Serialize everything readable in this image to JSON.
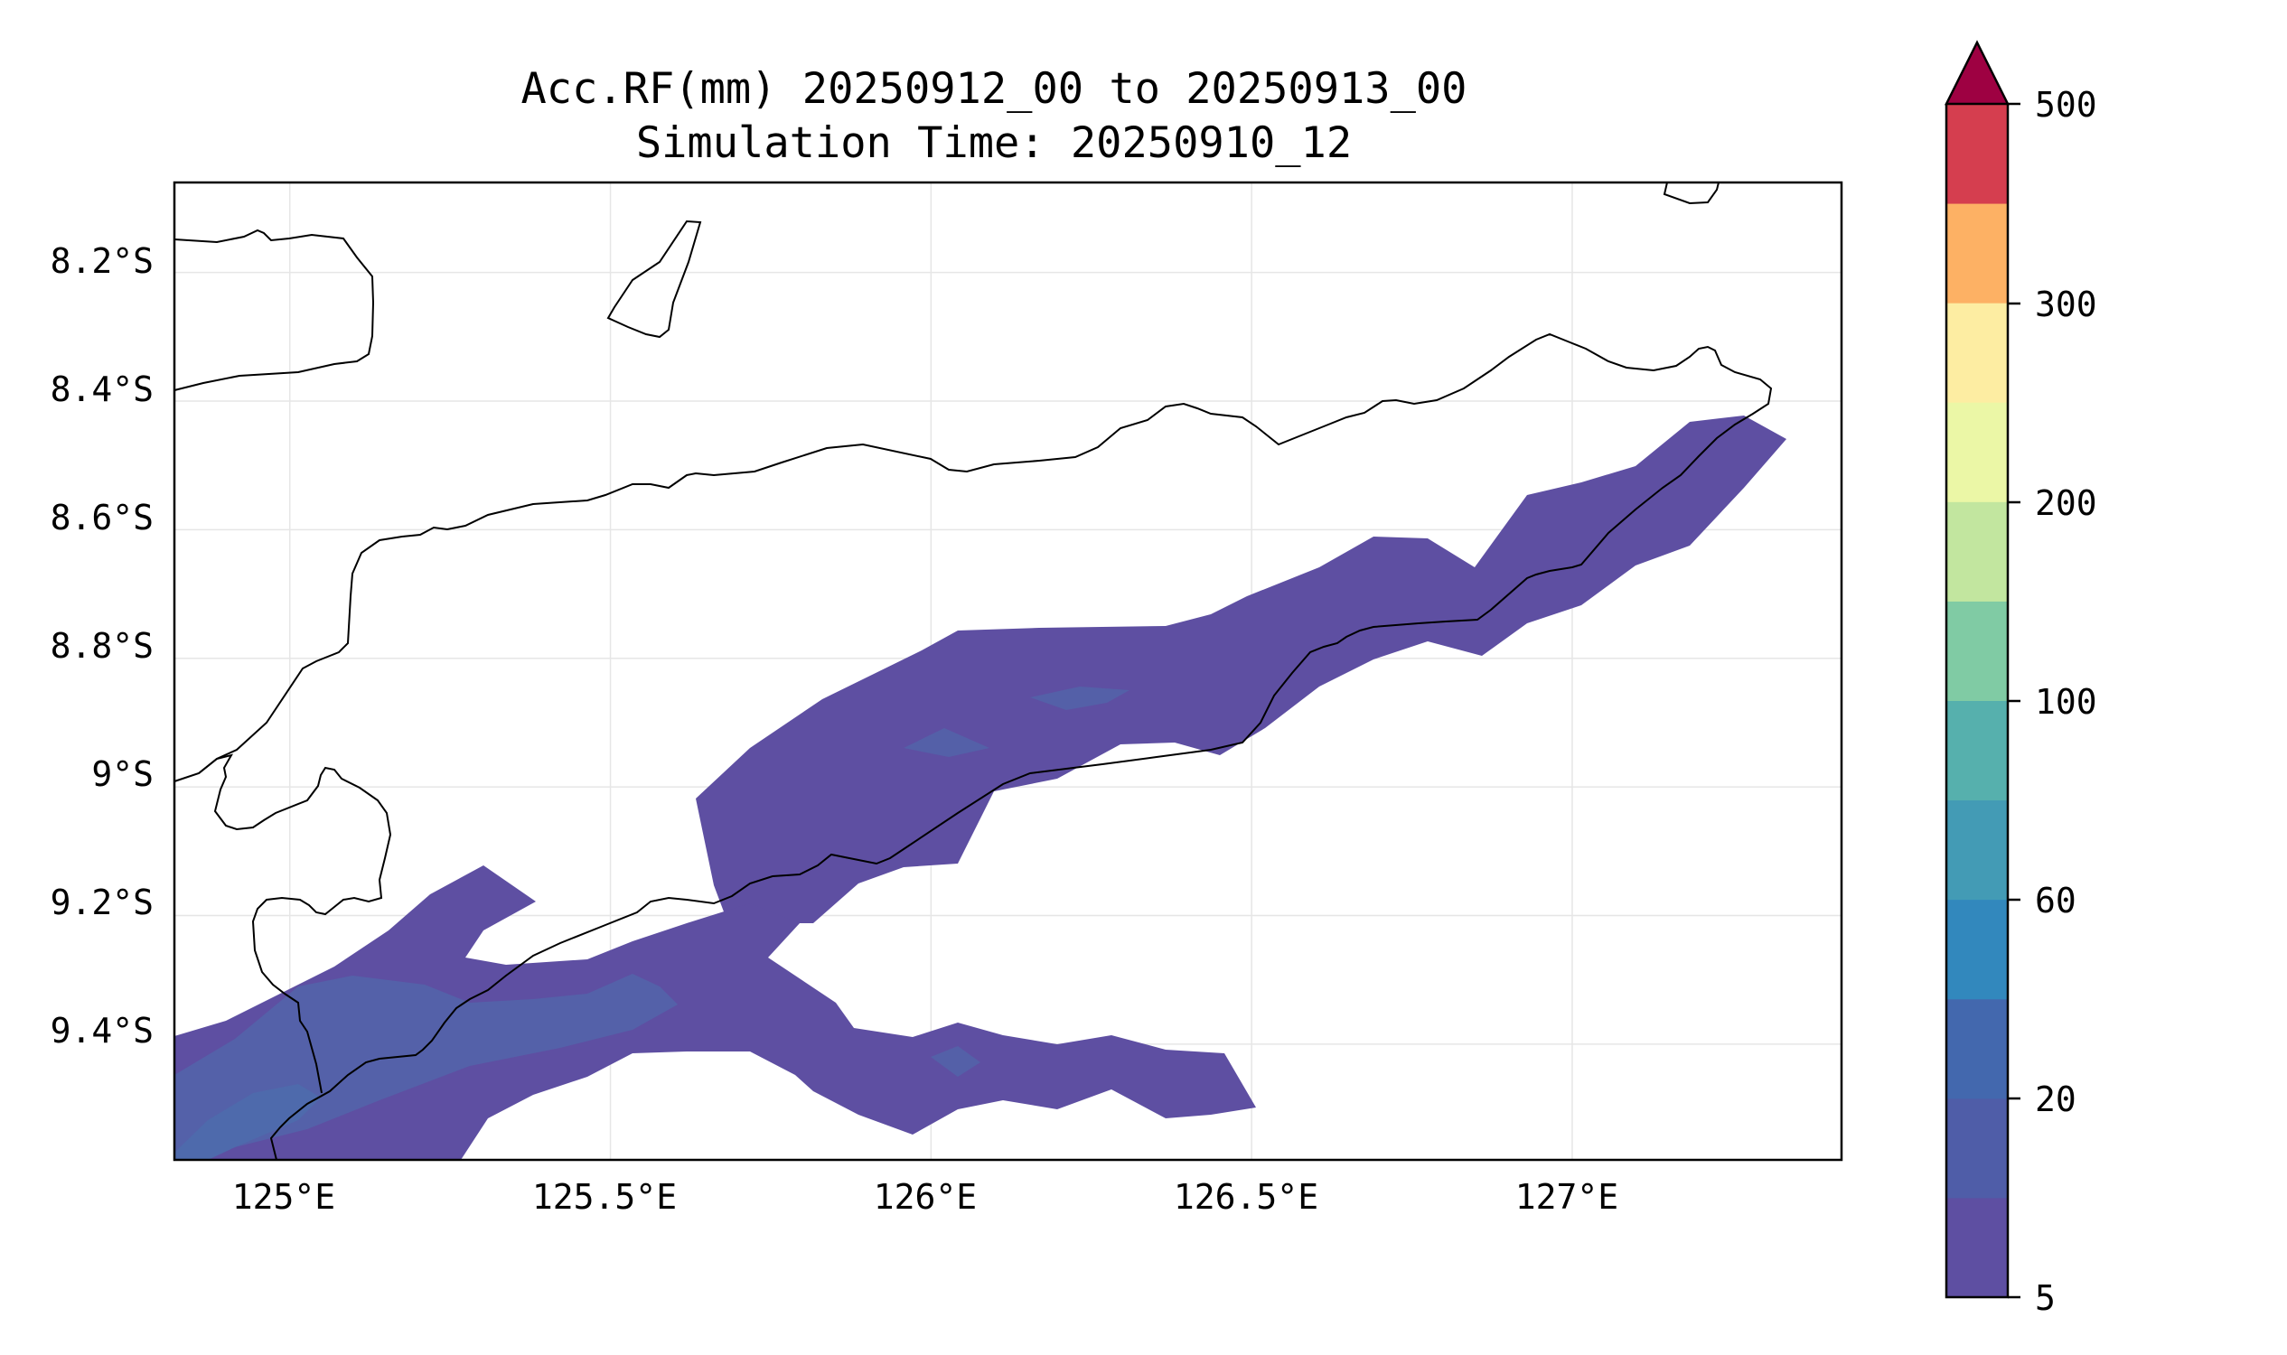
{
  "title_line1": "Acc.RF(mm) 20250912_00 to 20250913_00",
  "title_line2": "Simulation Time: 20250910_12",
  "chart_data": {
    "type": "contour-map",
    "grid": true,
    "x_ticks": [
      "125°E",
      "125.5°E",
      "126°E",
      "126.5°E",
      "127°E"
    ],
    "y_ticks": [
      "8.2°S",
      "8.4°S",
      "8.6°S",
      "8.8°S",
      "9°S",
      "9.2°S",
      "9.4°S"
    ],
    "xlim": [
      124.82,
      127.42
    ],
    "ylim": [
      -9.58,
      -8.06
    ],
    "colorbar": {
      "tick_labels": [
        "5",
        "20",
        "60",
        "100",
        "200",
        "300",
        "500"
      ],
      "colors": [
        "#5e4fa2",
        "#4f5da8",
        "#4368ae",
        "#3288bd",
        "#439bb5",
        "#56b0ad",
        "#80cba4",
        "#c2e69f",
        "#ebf7a6",
        "#fdeda2",
        "#fdb164",
        "#d53e4f"
      ],
      "extend_color": "#9e0142",
      "extend": "max"
    },
    "contour_fill_color": "#5e4fa2",
    "contour_inner_color": "#5560a8"
  }
}
